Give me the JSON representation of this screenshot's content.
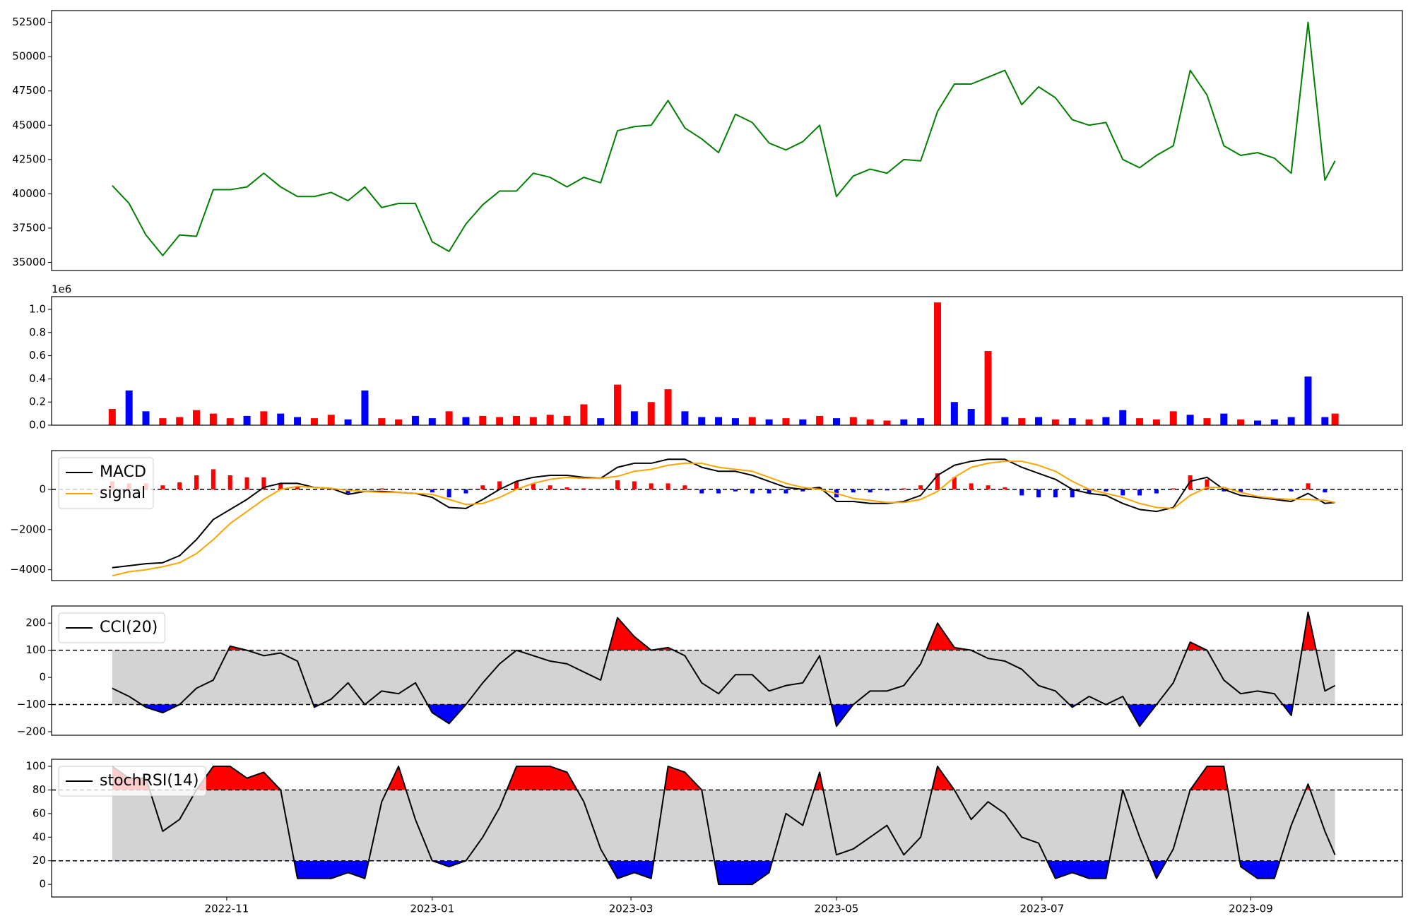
{
  "chart_data": {
    "type": "panels",
    "x": [
      "2022-09-28",
      "2022-10-03",
      "2022-10-08",
      "2022-10-13",
      "2022-10-18",
      "2022-10-23",
      "2022-10-28",
      "2022-11-02",
      "2022-11-07",
      "2022-11-12",
      "2022-11-17",
      "2022-11-22",
      "2022-11-27",
      "2022-12-02",
      "2022-12-07",
      "2022-12-12",
      "2022-12-17",
      "2022-12-22",
      "2022-12-27",
      "2023-01-01",
      "2023-01-06",
      "2023-01-11",
      "2023-01-16",
      "2023-01-21",
      "2023-01-26",
      "2023-01-31",
      "2023-02-05",
      "2023-02-10",
      "2023-02-15",
      "2023-02-20",
      "2023-02-25",
      "2023-03-02",
      "2023-03-07",
      "2023-03-12",
      "2023-03-17",
      "2023-03-22",
      "2023-03-27",
      "2023-04-01",
      "2023-04-06",
      "2023-04-11",
      "2023-04-16",
      "2023-04-21",
      "2023-04-26",
      "2023-05-01",
      "2023-05-06",
      "2023-05-11",
      "2023-05-16",
      "2023-05-21",
      "2023-05-26",
      "2023-05-31",
      "2023-06-05",
      "2023-06-10",
      "2023-06-15",
      "2023-06-20",
      "2023-06-25",
      "2023-06-30",
      "2023-07-05",
      "2023-07-10",
      "2023-07-15",
      "2023-07-20",
      "2023-07-25",
      "2023-07-30",
      "2023-08-04",
      "2023-08-09",
      "2023-08-14",
      "2023-08-19",
      "2023-08-24",
      "2023-08-29",
      "2023-09-03",
      "2023-09-08",
      "2023-09-13",
      "2023-09-18",
      "2023-09-23",
      "2023-09-26"
    ],
    "xlim": [
      "2022-09-10",
      "2023-10-16"
    ],
    "xticks": [
      {
        "value": "2022-11-01",
        "label": "2022-11"
      },
      {
        "value": "2023-01-01",
        "label": "2023-01"
      },
      {
        "value": "2023-03-01",
        "label": "2023-03"
      },
      {
        "value": "2023-05-01",
        "label": "2023-05"
      },
      {
        "value": "2023-07-01",
        "label": "2023-07"
      },
      {
        "value": "2023-09-01",
        "label": "2023-09"
      }
    ],
    "panels": [
      {
        "type": "line",
        "series": [
          {
            "color": "green",
            "values": [
              40600,
              39300,
              37000,
              35500,
              37000,
              36900,
              40300,
              40300,
              40500,
              41500,
              40500,
              39800,
              39800,
              40100,
              39500,
              40500,
              39000,
              39300,
              39300,
              36500,
              35800,
              37800,
              39200,
              40200,
              40200,
              41500,
              41200,
              40500,
              41200,
              40800,
              44600,
              44900,
              45000,
              46800,
              44800,
              44000,
              43000,
              45800,
              45200,
              43700,
              43200,
              43800,
              45000,
              39800,
              41300,
              41800,
              41500,
              42500,
              42400,
              46000,
              48000,
              48000,
              48500,
              49000,
              46500,
              47800,
              47000,
              45400,
              45000,
              45200,
              42500,
              41900,
              42800,
              43500,
              49000,
              47200,
              43500,
              42800,
              43000,
              42600,
              41500,
              52500,
              41000,
              42400
            ]
          }
        ],
        "ylim": [
          34408,
          53355
        ],
        "yticks": [
          35000,
          37500,
          40000,
          42500,
          45000,
          47500,
          50000,
          52500
        ]
      },
      {
        "type": "bar",
        "offset_label": "1e6",
        "values": [
          0.14,
          0.3,
          0.12,
          0.06,
          0.07,
          0.13,
          0.1,
          0.06,
          0.08,
          0.12,
          0.1,
          0.07,
          0.06,
          0.09,
          0.05,
          0.3,
          0.06,
          0.05,
          0.08,
          0.06,
          0.12,
          0.07,
          0.08,
          0.07,
          0.08,
          0.07,
          0.09,
          0.08,
          0.18,
          0.06,
          0.35,
          0.12,
          0.2,
          0.31,
          0.12,
          0.07,
          0.07,
          0.06,
          0.07,
          0.05,
          0.06,
          0.05,
          0.08,
          0.06,
          0.07,
          0.05,
          0.04,
          0.05,
          0.06,
          1.06,
          0.2,
          0.14,
          0.64,
          0.07,
          0.06,
          0.07,
          0.05,
          0.06,
          0.05,
          0.07,
          0.13,
          0.06,
          0.05,
          0.12,
          0.09,
          0.06,
          0.1,
          0.05,
          0.04,
          0.05,
          0.07,
          0.42,
          0.07,
          0.1
        ],
        "colors": [
          "red",
          "blue",
          "blue",
          "red",
          "red",
          "red",
          "red",
          "red",
          "blue",
          "red",
          "blue",
          "blue",
          "red",
          "red",
          "blue",
          "blue",
          "red",
          "red",
          "blue",
          "blue",
          "red",
          "blue",
          "red",
          "red",
          "red",
          "red",
          "red",
          "red",
          "red",
          "blue",
          "red",
          "blue",
          "red",
          "red",
          "blue",
          "blue",
          "blue",
          "blue",
          "red",
          "blue",
          "red",
          "blue",
          "red",
          "blue",
          "red",
          "red",
          "red",
          "blue",
          "blue",
          "red",
          "blue",
          "blue",
          "red",
          "blue",
          "red",
          "blue",
          "red",
          "blue",
          "red",
          "blue",
          "blue",
          "red",
          "red",
          "red",
          "blue",
          "red",
          "blue",
          "red",
          "blue",
          "blue",
          "blue",
          "blue",
          "blue",
          "red"
        ],
        "ylim": [
          0,
          1.11
        ],
        "yticks": [
          {
            "value": 0,
            "label": "0.0"
          },
          0.2,
          0.4,
          0.6,
          0.8,
          {
            "value": 1,
            "label": "1.0"
          }
        ]
      },
      {
        "type": "line",
        "legend": "upper left",
        "series": [
          {
            "name": "MACD",
            "color": "black",
            "values": [
              -3900,
              -3800,
              -3700,
              -3650,
              -3300,
              -2500,
              -1500,
              -1000,
              -500,
              100,
              300,
              300,
              100,
              50,
              -250,
              -100,
              -100,
              -150,
              -200,
              -400,
              -900,
              -950,
              -500,
              0,
              400,
              600,
              700,
              700,
              600,
              550,
              1100,
              1300,
              1300,
              1500,
              1500,
              1100,
              900,
              900,
              700,
              400,
              100,
              0,
              100,
              -600,
              -600,
              -700,
              -700,
              -600,
              -300,
              700,
              1200,
              1400,
              1500,
              1500,
              1100,
              800,
              500,
              0,
              -200,
              -300,
              -700,
              -1000,
              -1100,
              -900,
              400,
              600,
              0,
              -300,
              -400,
              -500,
              -600,
              -200,
              -700,
              -650
            ]
          },
          {
            "name": "signal",
            "color": "orange",
            "values": [
              -4300,
              -4100,
              -4000,
              -3850,
              -3650,
              -3200,
              -2500,
              -1700,
              -1100,
              -500,
              0,
              150,
              100,
              50,
              -50,
              -100,
              -150,
              -150,
              -200,
              -250,
              -500,
              -750,
              -700,
              -400,
              0,
              300,
              500,
              600,
              550,
              550,
              650,
              900,
              1000,
              1200,
              1300,
              1300,
              1100,
              1000,
              900,
              600,
              300,
              100,
              0,
              -200,
              -450,
              -550,
              -650,
              -650,
              -500,
              -100,
              600,
              1100,
              1300,
              1400,
              1400,
              1200,
              900,
              400,
              0,
              -200,
              -400,
              -700,
              -900,
              -950,
              -300,
              100,
              100,
              -150,
              -350,
              -450,
              -500,
              -500,
              -550,
              -650
            ]
          }
        ],
        "histogram": {
          "up_color": "red",
          "down_color": "blue",
          "values": [
            400,
            300,
            300,
            200,
            350,
            700,
            1000,
            700,
            600,
            600,
            300,
            150,
            0,
            0,
            -200,
            0,
            50,
            0,
            0,
            -150,
            -400,
            -200,
            200,
            400,
            400,
            300,
            200,
            100,
            50,
            0,
            450,
            400,
            300,
            300,
            200,
            -200,
            -200,
            -100,
            -200,
            -200,
            -200,
            -100,
            100,
            -400,
            -150,
            -150,
            -50,
            50,
            200,
            800,
            600,
            300,
            200,
            100,
            -300,
            -400,
            -400,
            -400,
            -200,
            -100,
            -300,
            -300,
            -200,
            50,
            700,
            500,
            -100,
            -150,
            -50,
            -50,
            -100,
            300,
            -150,
            0
          ]
        },
        "hlines": [
          0
        ],
        "ylim": [
          -4540,
          1930
        ],
        "yticks": [
          {
            "value": -4000,
            "label": "−4000"
          },
          {
            "value": -2000,
            "label": "−2000"
          },
          0
        ]
      },
      {
        "type": "line",
        "legend": "upper left",
        "series": [
          {
            "name": "CCI(20)",
            "color": "black",
            "values": [
              -40,
              -70,
              -110,
              -130,
              -100,
              -40,
              -10,
              115,
              100,
              80,
              90,
              60,
              -110,
              -80,
              -20,
              -100,
              -50,
              -60,
              -20,
              -130,
              -170,
              -100,
              -20,
              50,
              100,
              80,
              60,
              50,
              20,
              -10,
              220,
              150,
              100,
              110,
              80,
              -20,
              -60,
              10,
              10,
              -50,
              -30,
              -20,
              80,
              -180,
              -100,
              -50,
              -50,
              -30,
              50,
              200,
              110,
              100,
              70,
              60,
              30,
              -30,
              -50,
              -110,
              -70,
              -100,
              -70,
              -180,
              -100,
              -20,
              130,
              100,
              -10,
              -60,
              -50,
              -60,
              -140,
              240,
              -50,
              -30
            ]
          }
        ],
        "band": [
          -100,
          100
        ],
        "band_color": "lightgray",
        "fills": [
          {
            "above": 100,
            "color": "red"
          },
          {
            "below": -100,
            "color": "blue"
          }
        ],
        "hlines": [
          100,
          -100
        ],
        "ylim": [
          -213,
          263
        ],
        "yticks": [
          {
            "value": -200,
            "label": "−200"
          },
          {
            "value": -100,
            "label": "−100"
          },
          0,
          100,
          200
        ]
      },
      {
        "type": "line",
        "legend": "upper left",
        "series": [
          {
            "name": "stochRSI(14)",
            "color": "black",
            "values": [
              100,
              90,
              90,
              45,
              55,
              80,
              100,
              100,
              90,
              95,
              80,
              5,
              5,
              5,
              10,
              5,
              70,
              100,
              55,
              20,
              15,
              20,
              40,
              65,
              100,
              100,
              100,
              95,
              70,
              30,
              5,
              10,
              5,
              100,
              95,
              80,
              0,
              0,
              0,
              10,
              60,
              50,
              95,
              25,
              30,
              40,
              50,
              25,
              40,
              100,
              80,
              55,
              70,
              60,
              40,
              35,
              5,
              10,
              5,
              5,
              80,
              40,
              5,
              30,
              80,
              100,
              100,
              15,
              5,
              5,
              50,
              85,
              45,
              25
            ]
          }
        ],
        "band": [
          20,
          80
        ],
        "band_color": "lightgray",
        "fills": [
          {
            "above": 80,
            "color": "red"
          },
          {
            "below": 20,
            "color": "blue"
          }
        ],
        "hlines": [
          80,
          20
        ],
        "ylim": [
          -10.7,
          106
        ],
        "yticks": [
          0,
          20,
          40,
          60,
          80,
          100
        ]
      }
    ]
  }
}
